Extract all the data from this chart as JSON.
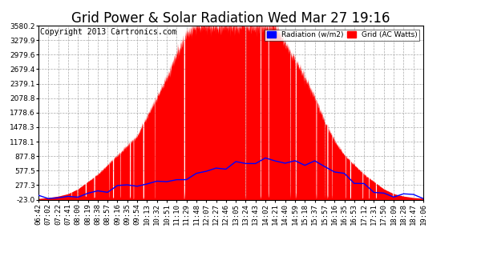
{
  "title": "Grid Power & Solar Radiation Wed Mar 27 19:16",
  "copyright": "Copyright 2013 Cartronics.com",
  "yticks": [
    3580.2,
    3279.9,
    2979.6,
    2679.4,
    2379.1,
    2078.8,
    1778.6,
    1478.3,
    1178.1,
    877.8,
    577.5,
    277.3,
    -23.0
  ],
  "ymin": -23.0,
  "ymax": 3580.2,
  "xtick_labels": [
    "06:42",
    "07:02",
    "07:22",
    "07:41",
    "08:00",
    "08:19",
    "08:38",
    "08:57",
    "09:16",
    "09:35",
    "09:54",
    "10:13",
    "10:32",
    "10:51",
    "11:10",
    "11:29",
    "11:48",
    "12:07",
    "12:27",
    "12:46",
    "13:05",
    "13:24",
    "13:43",
    "14:02",
    "14:21",
    "14:40",
    "14:59",
    "15:18",
    "15:37",
    "15:57",
    "16:16",
    "16:35",
    "16:53",
    "17:12",
    "17:31",
    "17:50",
    "18:09",
    "18:28",
    "18:47",
    "19:06"
  ],
  "legend_labels": [
    "Radiation (w/m2)",
    "Grid (AC Watts)"
  ],
  "legend_bg_colors": [
    "blue",
    "red"
  ],
  "bg_color": "#ffffff",
  "plot_bg_color": "#ffffff",
  "grid_color": "#aaaaaa",
  "radiation_color": "blue",
  "fill_color": "red",
  "title_fontsize": 12,
  "tick_fontsize": 6.5,
  "copyright_fontsize": 7
}
